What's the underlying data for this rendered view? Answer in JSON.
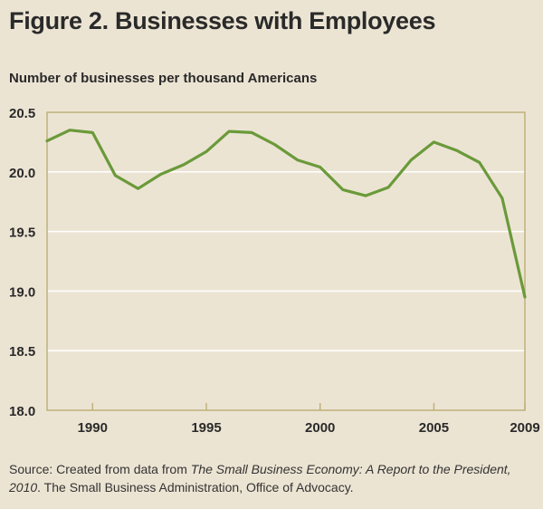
{
  "figure": {
    "title": "Figure 2.  Businesses with Employees",
    "source_prefix": "Source: Created from data from ",
    "source_title": "The Small Business Economy: A Report to the President, 2010",
    "source_suffix": ". The Small Business Administration, Office of Advocacy."
  },
  "chart_data": {
    "type": "line",
    "title": "Figure 2.  Businesses with Employees",
    "xlabel": "",
    "ylabel": "Number of businesses per thousand Americans",
    "xlim": [
      1988,
      2009
    ],
    "ylim": [
      18.0,
      20.5
    ],
    "yticks": [
      18.0,
      18.5,
      19.0,
      19.5,
      20.0,
      20.5
    ],
    "ytick_labels": [
      "18.0",
      "18.5",
      "19.0",
      "19.5",
      "20.0",
      "20.5"
    ],
    "xticks": [
      1990,
      1995,
      2000,
      2005,
      2009
    ],
    "xtick_labels": [
      "1990",
      "1995",
      "2000",
      "2005",
      "2009"
    ],
    "grid": "horizontal",
    "legend": "none",
    "series": [
      {
        "x": [
          1988,
          1989,
          1990,
          1991,
          1992,
          1993,
          1994,
          1995,
          1996,
          1997,
          1998,
          1999,
          2000,
          2001,
          2002,
          2003,
          2004,
          2005,
          2006,
          2007,
          2008,
          2009
        ],
        "values": [
          20.26,
          20.35,
          20.33,
          19.97,
          19.86,
          19.98,
          20.06,
          20.17,
          20.34,
          20.33,
          20.23,
          20.1,
          20.04,
          19.85,
          19.8,
          19.87,
          20.1,
          20.25,
          20.18,
          20.08,
          19.78,
          18.95
        ]
      }
    ],
    "colors": {
      "line": "#6a9a3a",
      "plot_background": "#ece4d3",
      "grid": "#ffffff",
      "frame": "#bfb17a"
    }
  }
}
